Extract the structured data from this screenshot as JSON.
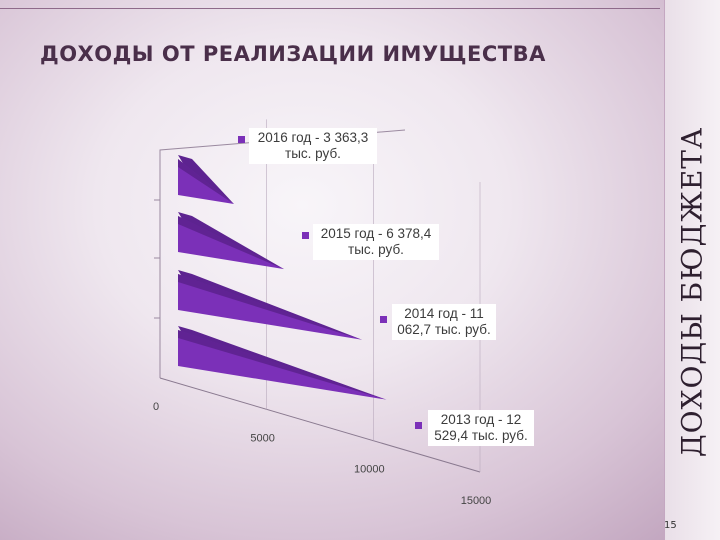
{
  "slide": {
    "title": "ДОХОДЫ ОТ РЕАЛИЗАЦИИ ИМУЩЕСТВА",
    "side_title": "ДОХОДЫ БЮДЖЕТА",
    "page_number": "15"
  },
  "colors": {
    "series_front": "#7b30b8",
    "series_top": "#5d2390",
    "series_side": "#4a1a75",
    "title": "#4a2f4a"
  },
  "chart_data": {
    "type": "bar",
    "orientation": "3d-cone-horizontal",
    "categories": [
      "2013 год",
      "2014 год",
      "2015 год",
      "2016 год"
    ],
    "values": [
      12529.4,
      11062.7,
      6378.4,
      3363.3
    ],
    "value_axis": {
      "ticks": [
        "0",
        "5000",
        "10000",
        "15000"
      ],
      "range": [
        0,
        15000
      ]
    },
    "data_labels": [
      "2013 год - 12 529,4 тыс. руб.",
      "2014 год - 11 062,7 тыс. руб.",
      "2015 год - 6 378,4 тыс. руб.",
      "2016 год - 3 363,3 тыс. руб."
    ],
    "legend": "beside-bars"
  }
}
